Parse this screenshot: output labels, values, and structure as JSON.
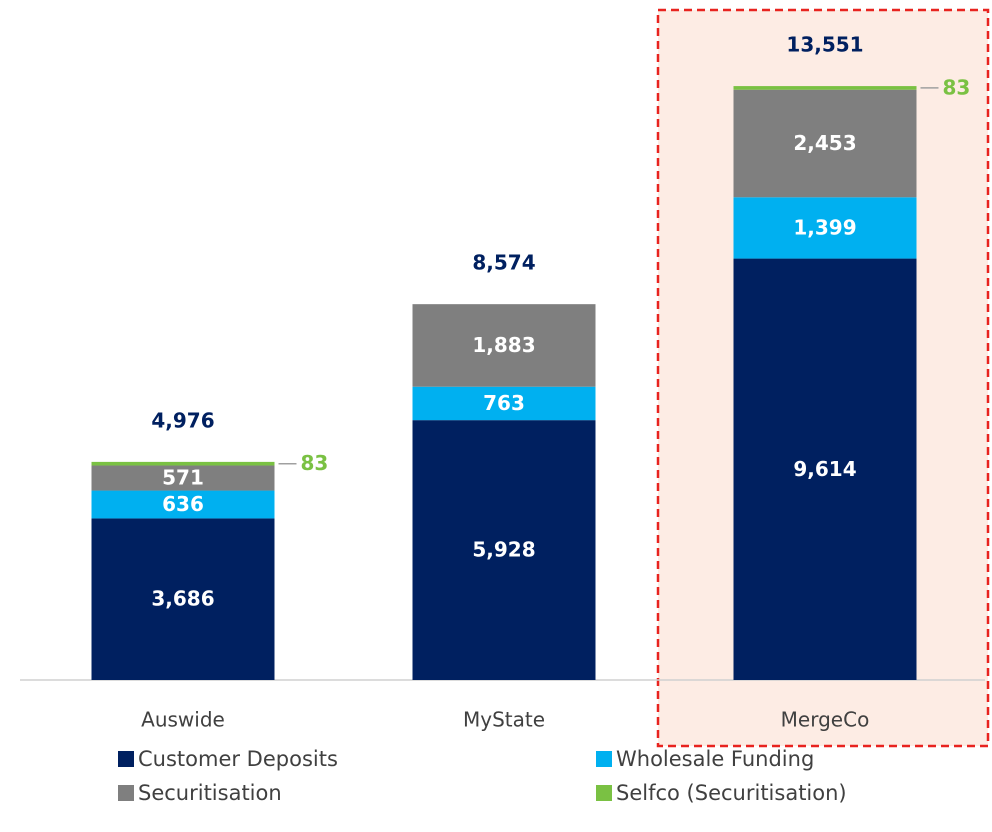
{
  "chart_data": {
    "type": "stacked_bar",
    "categories": [
      "Auswide",
      "MyState",
      "MergeCo"
    ],
    "series": [
      {
        "name": "Customer Deposits",
        "color": "#002060",
        "values": [
          3686,
          5928,
          9614
        ],
        "value_labels": [
          "3,686",
          "5,928",
          "9,614"
        ]
      },
      {
        "name": "Wholesale Funding",
        "color": "#00b0f0",
        "values": [
          636,
          763,
          1399
        ],
        "value_labels": [
          "636",
          "763",
          "1,399"
        ]
      },
      {
        "name": "Securitisation",
        "color": "#7f7f7f",
        "values": [
          571,
          1883,
          2453
        ],
        "value_labels": [
          "571",
          "1,883",
          "2,453"
        ]
      },
      {
        "name": "Selfco (Securitisation)",
        "color": "#7ac143",
        "values": [
          83,
          null,
          83
        ]
      }
    ],
    "totals": {
      "values": [
        4976,
        8574,
        13551
      ],
      "value_labels": [
        "4,976",
        "8,574",
        "13,551"
      ]
    },
    "highlight": "MergeCo"
  }
}
